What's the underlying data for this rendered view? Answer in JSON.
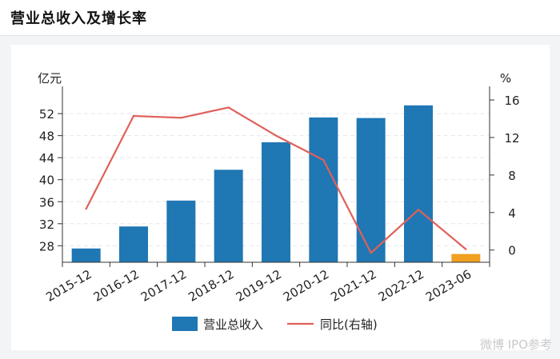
{
  "header": {
    "title": "营业总收入及增长率"
  },
  "chart_data": {
    "type": "bar",
    "categories": [
      "2015-12",
      "2016-12",
      "2017-12",
      "2018-12",
      "2019-12",
      "2020-12",
      "2021-12",
      "2022-12",
      "2023-06"
    ],
    "series": [
      {
        "name": "营业总收入",
        "type": "bar",
        "axis": "left",
        "values": [
          27.5,
          31.5,
          36.2,
          41.8,
          46.8,
          51.3,
          51.2,
          53.5,
          26.5
        ],
        "colors": [
          "#1f77b4",
          "#1f77b4",
          "#1f77b4",
          "#1f77b4",
          "#1f77b4",
          "#1f77b4",
          "#1f77b4",
          "#1f77b4",
          "#f0a121"
        ]
      },
      {
        "name": "同比(右轴)",
        "type": "line",
        "axis": "right",
        "values": [
          4.4,
          14.3,
          14.1,
          15.2,
          12.2,
          9.6,
          -0.3,
          4.3,
          0.1
        ],
        "color": "#e0605a"
      }
    ],
    "left_axis": {
      "unit": "亿元",
      "ticks": [
        28,
        32,
        36,
        40,
        44,
        48,
        52
      ],
      "range": [
        25,
        55.5
      ]
    },
    "right_axis": {
      "unit": "%",
      "ticks": [
        0,
        4,
        8,
        12,
        16
      ],
      "range": [
        -1.3,
        16.6
      ]
    },
    "grid": true,
    "legend_position": "bottom"
  },
  "watermark": "微博 IPO参考"
}
